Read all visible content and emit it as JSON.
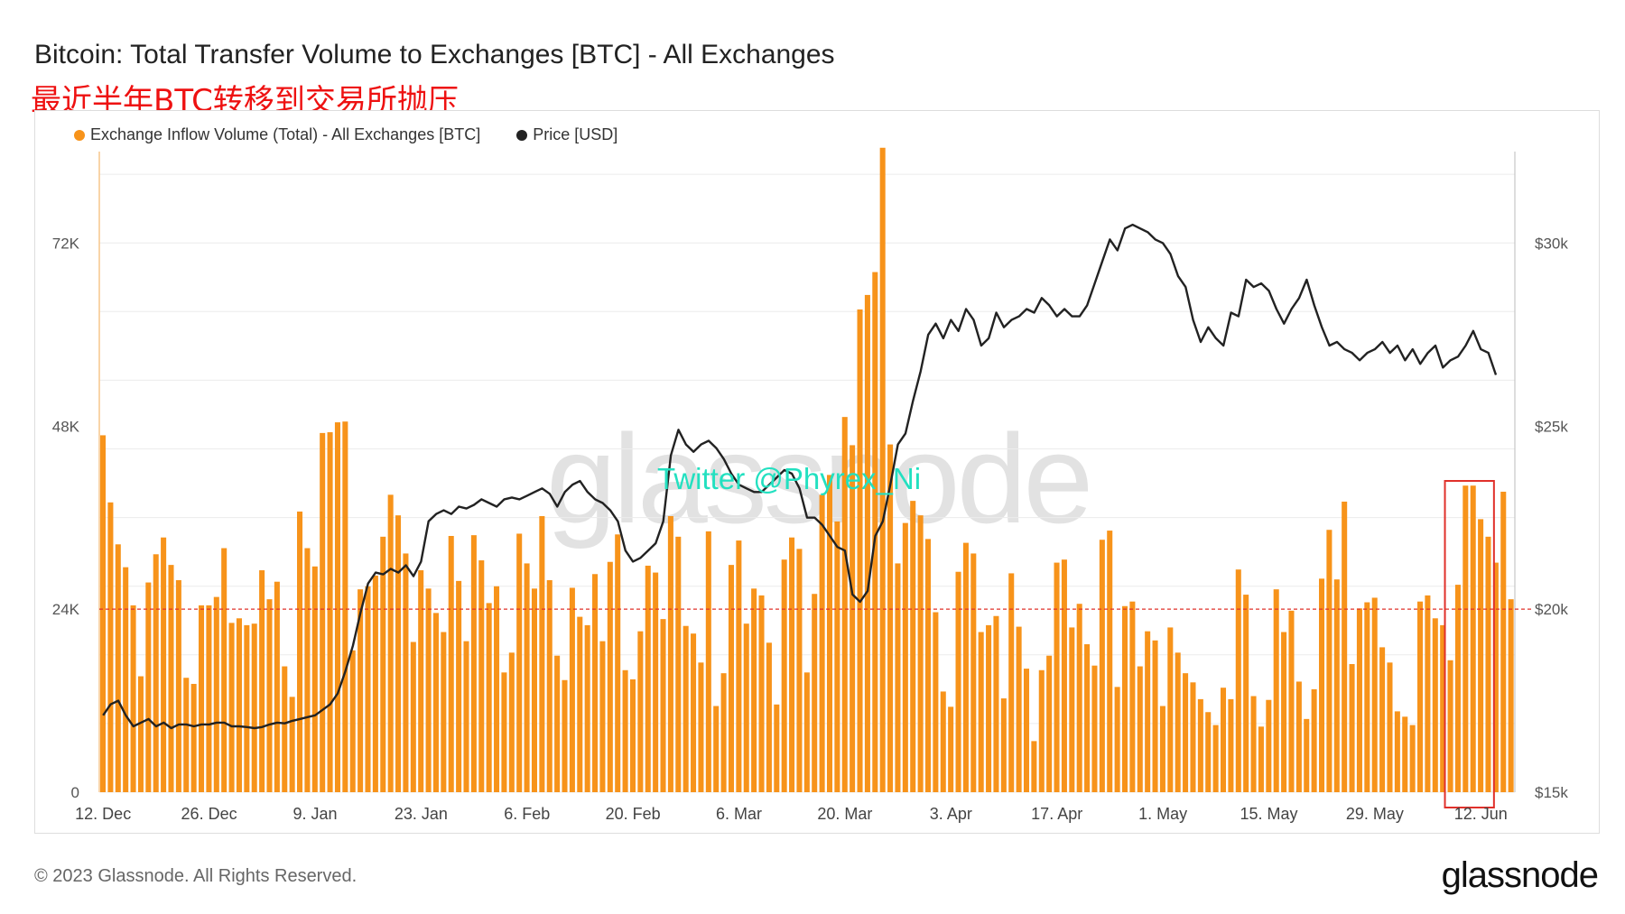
{
  "header": {
    "title": "Bitcoin: Total Transfer Volume to Exchanges [BTC] - All Exchanges",
    "subtitle": "最近半年BTC转移到交易所抛压"
  },
  "legend": [
    {
      "label": "Exchange Inflow Volume (Total) - All Exchanges [BTC]",
      "color": "#f7931a"
    },
    {
      "label": "Price [USD]",
      "color": "#222222"
    }
  ],
  "watermark": "glassnode",
  "twitter_tag": "Twitter @Phyrex_Ni",
  "footer": {
    "copyright": "© 2023 Glassnode. All Rights Reserved.",
    "brand": "glassnode"
  },
  "colors": {
    "bar": "#f7931a",
    "line": "#222222",
    "reference": "#e0302a",
    "highlight": "#e0302a"
  },
  "chart_data": {
    "type": "bar",
    "title": "Bitcoin: Total Transfer Volume to Exchanges [BTC] - All Exchanges",
    "x_ticks": [
      "12. Dec",
      "26. Dec",
      "9. Jan",
      "23. Jan",
      "6. Feb",
      "20. Feb",
      "6. Mar",
      "20. Mar",
      "3. Apr",
      "17. Apr",
      "1. May",
      "15. May",
      "29. May",
      "12. Jun"
    ],
    "y_left_ticks": [
      "0",
      "24K",
      "48K",
      "72K"
    ],
    "y_left_range": [
      0,
      84000
    ],
    "y_right_ticks": [
      "$15k",
      "$20k",
      "$25k",
      "$30k"
    ],
    "y_right_range": [
      15000,
      32500
    ],
    "grid": true,
    "legend_position": "top-left",
    "reference_line": {
      "axis": "right",
      "value": 20000
    },
    "highlight_box_days": [
      178,
      183
    ],
    "start_date": "2022-12-12",
    "series": [
      {
        "name": "Exchange Inflow Volume (Total) - All Exchanges [BTC]",
        "kind": "bar",
        "axis": "left",
        "values": [
          46800,
          38000,
          32500,
          29500,
          24500,
          15200,
          27500,
          31200,
          33400,
          29800,
          27800,
          15000,
          14200,
          24500,
          24500,
          25600,
          32000,
          22200,
          22800,
          21900,
          22100,
          29100,
          25300,
          27600,
          16500,
          12500,
          36800,
          32000,
          29600,
          47100,
          47200,
          48500,
          48600,
          18600,
          26600,
          27000,
          28400,
          33500,
          39000,
          36300,
          31300,
          19700,
          29100,
          26700,
          23500,
          21000,
          33600,
          27700,
          19800,
          33700,
          30400,
          24800,
          27000,
          15700,
          18300,
          33900,
          30000,
          26700,
          36200,
          27800,
          17900,
          14700,
          26800,
          23000,
          21900,
          28600,
          19800,
          30200,
          33800,
          16000,
          14800,
          21100,
          29700,
          28800,
          22700,
          36200,
          33500,
          21800,
          20800,
          17000,
          34200,
          11300,
          15600,
          29800,
          33000,
          22100,
          26700,
          25800,
          19600,
          11500,
          30500,
          33400,
          31900,
          15700,
          26000,
          39000,
          41600,
          35500,
          49200,
          45500,
          63300,
          65200,
          68200,
          84500,
          45600,
          30000,
          35300,
          38200,
          36300,
          33200,
          23600,
          13200,
          11200,
          28900,
          32700,
          31300,
          21000,
          21900,
          23100,
          12300,
          28700,
          21700,
          16200,
          6700,
          16000,
          17900,
          30100,
          30500,
          21600,
          24700,
          19400,
          16600,
          33100,
          34300,
          13800,
          24400,
          25000,
          16500,
          21100,
          19900,
          11300,
          21600,
          18300,
          15600,
          14400,
          12200,
          10500,
          8800,
          13700,
          12200,
          29200,
          25900,
          12600,
          8600,
          12100,
          26600,
          21000,
          23800,
          14500,
          9600,
          13500,
          28000,
          34400,
          27900,
          38100,
          16800,
          24100,
          24900,
          25500,
          19000,
          17000,
          10600,
          9900,
          8800,
          25000,
          25800,
          22800,
          21900,
          17300,
          27200,
          40200,
          40200,
          35800,
          33500,
          30100,
          39400,
          25300
        ],
        "range_min": 1000
      },
      {
        "name": "Price [USD]",
        "kind": "line",
        "axis": "right",
        "values": [
          17100,
          17400,
          17500,
          17100,
          16800,
          16900,
          17000,
          16800,
          16900,
          16750,
          16850,
          16850,
          16800,
          16850,
          16850,
          16900,
          16900,
          16800,
          16800,
          16780,
          16750,
          16780,
          16850,
          16900,
          16880,
          16950,
          17000,
          17050,
          17100,
          17250,
          17400,
          17700,
          18300,
          19000,
          19900,
          20700,
          21000,
          20950,
          21100,
          21000,
          21200,
          20900,
          21300,
          22400,
          22600,
          22700,
          22600,
          22800,
          22750,
          22850,
          23000,
          22900,
          22800,
          23000,
          23050,
          23000,
          23100,
          23200,
          23300,
          23150,
          22800,
          23200,
          23400,
          23500,
          23200,
          23000,
          22900,
          22700,
          22400,
          21600,
          21300,
          21400,
          21600,
          21800,
          22400,
          24200,
          24900,
          24500,
          24300,
          24500,
          24600,
          24400,
          24100,
          23700,
          23400,
          23300,
          23200,
          23200,
          23400,
          23600,
          23800,
          23700,
          23300,
          22500,
          22500,
          22300,
          22000,
          21700,
          21600,
          20400,
          20200,
          20500,
          22000,
          22400,
          23400,
          24500,
          24800,
          25700,
          26500,
          27500,
          27800,
          27400,
          27900,
          27600,
          28200,
          27900,
          27200,
          27400,
          28100,
          27700,
          27900,
          28000,
          28200,
          28100,
          28500,
          28300,
          28000,
          28200,
          28000,
          28000,
          28300,
          28900,
          29500,
          30100,
          29800,
          30400,
          30500,
          30400,
          30300,
          30100,
          30000,
          29700,
          29100,
          28800,
          27900,
          27300,
          27700,
          27400,
          27200,
          28100,
          28000,
          29000,
          28800,
          28900,
          28700,
          28200,
          27800,
          28200,
          28500,
          29000,
          28300,
          27700,
          27200,
          27300,
          27100,
          27000,
          26800,
          27000,
          27100,
          27300,
          27000,
          27200,
          26800,
          27100,
          26700,
          27000,
          27200,
          26600,
          26800,
          26900,
          27200,
          27600,
          27100,
          27000,
          26400
        ]
      }
    ]
  }
}
